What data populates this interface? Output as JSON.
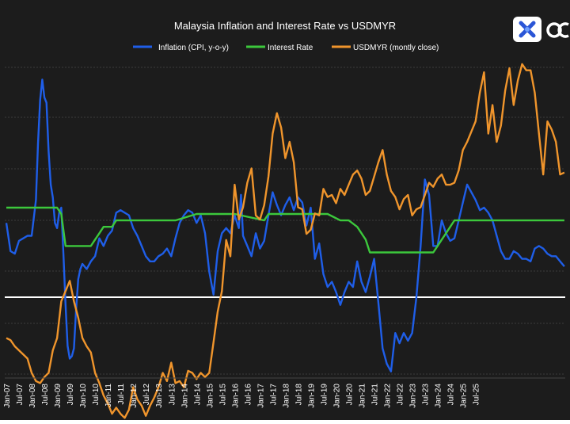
{
  "chart_data": {
    "type": "line",
    "title": "Malaysia Inflation and Interest Rate vs USDMYR",
    "xlabel": "",
    "ylabel": "",
    "x_ticks": [
      "Jan-07",
      "Jul-07",
      "Jan-08",
      "Jul-08",
      "Jan-09",
      "Jul-09",
      "Jan-10",
      "Jul-10",
      "Jan-11",
      "Jul-11",
      "Jan-12",
      "Jul-12",
      "Jan-13",
      "Jul-13",
      "Jan-14",
      "Jul-14",
      "Jan-15",
      "Jul-15",
      "Jan-16",
      "Jul-16",
      "Jan-17",
      "Jul-17",
      "Jan-18",
      "Jul-18",
      "Jan-19",
      "Jul-19",
      "Jan-20",
      "Jul-20",
      "Jan-21",
      "Jul-21",
      "Jan-22",
      "Jul-22",
      "Jan-23",
      "Jul-23",
      "Jan-24",
      "Jul-24",
      "Jan-25",
      "Jul-25"
    ],
    "legend_position": "top",
    "grid": true,
    "background": "#1c1c1c",
    "zero_line": "white",
    "series": [
      {
        "name": "Inflation (CPI, y-o-y)",
        "color": "#1f5ee8",
        "points": [
          [
            0,
            2.9
          ],
          [
            2,
            1.8
          ],
          [
            4,
            1.7
          ],
          [
            6,
            2.2
          ],
          [
            8,
            2.3
          ],
          [
            10,
            2.4
          ],
          [
            12,
            2.4
          ],
          [
            14,
            3.8
          ],
          [
            15,
            6.0
          ],
          [
            16,
            7.7
          ],
          [
            17,
            8.5
          ],
          [
            18,
            7.8
          ],
          [
            19,
            7.6
          ],
          [
            20,
            5.7
          ],
          [
            21,
            4.4
          ],
          [
            22,
            3.9
          ],
          [
            23,
            2.9
          ],
          [
            24,
            2.7
          ],
          [
            25,
            3.3
          ],
          [
            26,
            3.5
          ],
          [
            27,
            1.7
          ],
          [
            28,
            -0.3
          ],
          [
            29,
            -1.9
          ],
          [
            30,
            -2.4
          ],
          [
            31,
            -2.3
          ],
          [
            32,
            -2.0
          ],
          [
            33,
            -0.5
          ],
          [
            34,
            0.7
          ],
          [
            35,
            1.1
          ],
          [
            36,
            1.3
          ],
          [
            38,
            1.1
          ],
          [
            40,
            1.4
          ],
          [
            42,
            1.6
          ],
          [
            44,
            2.3
          ],
          [
            46,
            2.0
          ],
          [
            48,
            2.4
          ],
          [
            50,
            2.6
          ],
          [
            52,
            3.3
          ],
          [
            54,
            3.4
          ],
          [
            56,
            3.3
          ],
          [
            58,
            3.2
          ],
          [
            60,
            2.7
          ],
          [
            62,
            2.4
          ],
          [
            64,
            2.0
          ],
          [
            66,
            1.6
          ],
          [
            68,
            1.4
          ],
          [
            70,
            1.4
          ],
          [
            72,
            1.6
          ],
          [
            74,
            1.7
          ],
          [
            76,
            1.9
          ],
          [
            78,
            1.6
          ],
          [
            80,
            2.3
          ],
          [
            82,
            2.9
          ],
          [
            84,
            3.2
          ],
          [
            86,
            3.4
          ],
          [
            88,
            3.3
          ],
          [
            90,
            2.9
          ],
          [
            92,
            3.2
          ],
          [
            94,
            2.5
          ],
          [
            96,
            1.0
          ],
          [
            98,
            0.1
          ],
          [
            100,
            1.8
          ],
          [
            102,
            2.5
          ],
          [
            104,
            2.7
          ],
          [
            106,
            2.5
          ],
          [
            108,
            3.2
          ],
          [
            110,
            2.7
          ],
          [
            111,
            4.0
          ],
          [
            112,
            2.4
          ],
          [
            114,
            2.0
          ],
          [
            116,
            1.6
          ],
          [
            118,
            2.5
          ],
          [
            120,
            1.9
          ],
          [
            122,
            2.2
          ],
          [
            124,
            3.2
          ],
          [
            126,
            4.1
          ],
          [
            128,
            3.6
          ],
          [
            130,
            3.2
          ],
          [
            132,
            3.6
          ],
          [
            134,
            3.9
          ],
          [
            136,
            3.4
          ],
          [
            138,
            3.9
          ],
          [
            140,
            3.7
          ],
          [
            142,
            2.8
          ],
          [
            144,
            3.5
          ],
          [
            146,
            1.5
          ],
          [
            148,
            2.1
          ],
          [
            150,
            0.9
          ],
          [
            152,
            0.4
          ],
          [
            154,
            0.6
          ],
          [
            156,
            0.2
          ],
          [
            158,
            -0.3
          ],
          [
            160,
            0.2
          ],
          [
            162,
            0.6
          ],
          [
            164,
            0.4
          ],
          [
            166,
            1.4
          ],
          [
            168,
            0.6
          ],
          [
            170,
            0.2
          ],
          [
            172,
            0.8
          ],
          [
            174,
            1.5
          ],
          [
            176,
            -0.2
          ],
          [
            178,
            -2.0
          ],
          [
            180,
            -2.6
          ],
          [
            182,
            -2.9
          ],
          [
            184,
            -1.4
          ],
          [
            186,
            -1.8
          ],
          [
            188,
            -1.4
          ],
          [
            190,
            -1.7
          ],
          [
            192,
            -1.4
          ],
          [
            194,
            0.0
          ],
          [
            196,
            2.0
          ],
          [
            198,
            4.6
          ],
          [
            200,
            4.0
          ],
          [
            202,
            2.0
          ],
          [
            204,
            2.0
          ],
          [
            206,
            3.0
          ],
          [
            208,
            2.5
          ],
          [
            210,
            2.2
          ],
          [
            212,
            2.3
          ],
          [
            214,
            3.0
          ],
          [
            216,
            3.7
          ],
          [
            218,
            4.4
          ],
          [
            220,
            4.1
          ],
          [
            222,
            3.8
          ],
          [
            224,
            3.4
          ],
          [
            226,
            3.5
          ],
          [
            228,
            3.3
          ],
          [
            230,
            3.0
          ],
          [
            232,
            2.4
          ],
          [
            234,
            1.8
          ],
          [
            236,
            1.5
          ],
          [
            238,
            1.5
          ],
          [
            240,
            1.8
          ],
          [
            242,
            1.7
          ],
          [
            244,
            1.5
          ],
          [
            246,
            1.5
          ],
          [
            248,
            1.4
          ],
          [
            250,
            1.9
          ],
          [
            252,
            2.0
          ],
          [
            254,
            1.9
          ],
          [
            256,
            1.7
          ],
          [
            258,
            1.6
          ],
          [
            260,
            1.6
          ],
          [
            262,
            1.4
          ],
          [
            264,
            1.2
          ]
        ]
      },
      {
        "name": "Interest Rate",
        "color": "#3cc83c",
        "points": [
          [
            0,
            3.5
          ],
          [
            24,
            3.5
          ],
          [
            26,
            3.25
          ],
          [
            28,
            2.0
          ],
          [
            40,
            2.0
          ],
          [
            42,
            2.25
          ],
          [
            44,
            2.5
          ],
          [
            46,
            2.75
          ],
          [
            50,
            2.75
          ],
          [
            52,
            3.0
          ],
          [
            80,
            3.0
          ],
          [
            90,
            3.25
          ],
          [
            108,
            3.25
          ],
          [
            122,
            3.0
          ],
          [
            124,
            3.25
          ],
          [
            152,
            3.25
          ],
          [
            158,
            3.0
          ],
          [
            162,
            3.0
          ],
          [
            166,
            2.75
          ],
          [
            168,
            2.5
          ],
          [
            170,
            2.25
          ],
          [
            172,
            1.75
          ],
          [
            202,
            1.75
          ],
          [
            204,
            2.0
          ],
          [
            206,
            2.25
          ],
          [
            208,
            2.5
          ],
          [
            210,
            2.75
          ],
          [
            212,
            3.0
          ],
          [
            226,
            3.0
          ],
          [
            264,
            3.0
          ]
        ]
      },
      {
        "name": "USDMYR (montly close)",
        "color": "#f0952c",
        "points": [
          [
            0,
            3.42
          ],
          [
            2,
            3.41
          ],
          [
            4,
            3.38
          ],
          [
            6,
            3.36
          ],
          [
            8,
            3.34
          ],
          [
            10,
            3.32
          ],
          [
            12,
            3.25
          ],
          [
            14,
            3.21
          ],
          [
            16,
            3.2
          ],
          [
            18,
            3.23
          ],
          [
            20,
            3.25
          ],
          [
            22,
            3.36
          ],
          [
            24,
            3.42
          ],
          [
            26,
            3.6
          ],
          [
            28,
            3.65
          ],
          [
            30,
            3.7
          ],
          [
            32,
            3.6
          ],
          [
            34,
            3.52
          ],
          [
            36,
            3.42
          ],
          [
            38,
            3.38
          ],
          [
            40,
            3.35
          ],
          [
            42,
            3.25
          ],
          [
            44,
            3.2
          ],
          [
            46,
            3.14
          ],
          [
            48,
            3.1
          ],
          [
            50,
            3.05
          ],
          [
            52,
            3.08
          ],
          [
            54,
            3.05
          ],
          [
            56,
            3.03
          ],
          [
            58,
            3.07
          ],
          [
            60,
            3.18
          ],
          [
            62,
            3.12
          ],
          [
            64,
            3.09
          ],
          [
            66,
            3.04
          ],
          [
            68,
            3.09
          ],
          [
            70,
            3.13
          ],
          [
            72,
            3.18
          ],
          [
            74,
            3.25
          ],
          [
            76,
            3.21
          ],
          [
            78,
            3.3
          ],
          [
            80,
            3.2
          ],
          [
            82,
            3.21
          ],
          [
            84,
            3.18
          ],
          [
            86,
            3.26
          ],
          [
            88,
            3.25
          ],
          [
            90,
            3.22
          ],
          [
            92,
            3.25
          ],
          [
            94,
            3.23
          ],
          [
            96,
            3.25
          ],
          [
            98,
            3.4
          ],
          [
            100,
            3.55
          ],
          [
            102,
            3.65
          ],
          [
            104,
            3.9
          ],
          [
            106,
            3.82
          ],
          [
            108,
            4.17
          ],
          [
            110,
            4.0
          ],
          [
            112,
            4.06
          ],
          [
            114,
            4.18
          ],
          [
            116,
            4.25
          ],
          [
            118,
            4.02
          ],
          [
            120,
            4.0
          ],
          [
            122,
            4.07
          ],
          [
            124,
            4.21
          ],
          [
            126,
            4.42
          ],
          [
            128,
            4.52
          ],
          [
            130,
            4.45
          ],
          [
            132,
            4.3
          ],
          [
            134,
            4.38
          ],
          [
            136,
            4.28
          ],
          [
            138,
            4.06
          ],
          [
            140,
            4.05
          ],
          [
            142,
            3.93
          ],
          [
            144,
            3.95
          ],
          [
            146,
            4.03
          ],
          [
            148,
            4.02
          ],
          [
            150,
            4.15
          ],
          [
            152,
            4.11
          ],
          [
            154,
            4.12
          ],
          [
            156,
            4.08
          ],
          [
            158,
            4.15
          ],
          [
            160,
            4.12
          ],
          [
            162,
            4.17
          ],
          [
            164,
            4.22
          ],
          [
            166,
            4.24
          ],
          [
            168,
            4.2
          ],
          [
            170,
            4.12
          ],
          [
            172,
            4.14
          ],
          [
            174,
            4.21
          ],
          [
            176,
            4.28
          ],
          [
            178,
            4.34
          ],
          [
            180,
            4.22
          ],
          [
            182,
            4.14
          ],
          [
            184,
            4.11
          ],
          [
            186,
            4.05
          ],
          [
            188,
            4.1
          ],
          [
            190,
            4.12
          ],
          [
            192,
            4.02
          ],
          [
            194,
            4.05
          ],
          [
            196,
            4.06
          ],
          [
            198,
            4.12
          ],
          [
            200,
            4.18
          ],
          [
            202,
            4.16
          ],
          [
            204,
            4.2
          ],
          [
            206,
            4.22
          ],
          [
            208,
            4.17
          ],
          [
            210,
            4.17
          ],
          [
            212,
            4.18
          ],
          [
            214,
            4.24
          ],
          [
            216,
            4.34
          ],
          [
            218,
            4.38
          ],
          [
            220,
            4.43
          ],
          [
            222,
            4.48
          ],
          [
            224,
            4.62
          ],
          [
            226,
            4.72
          ],
          [
            228,
            4.42
          ],
          [
            230,
            4.56
          ],
          [
            232,
            4.38
          ],
          [
            234,
            4.46
          ],
          [
            236,
            4.63
          ],
          [
            238,
            4.74
          ],
          [
            240,
            4.56
          ],
          [
            242,
            4.68
          ],
          [
            244,
            4.76
          ],
          [
            246,
            4.73
          ],
          [
            248,
            4.73
          ],
          [
            250,
            4.62
          ],
          [
            252,
            4.42
          ],
          [
            254,
            4.22
          ],
          [
            256,
            4.48
          ],
          [
            258,
            4.44
          ],
          [
            260,
            4.38
          ],
          [
            262,
            4.22
          ],
          [
            264,
            4.23
          ]
        ]
      }
    ]
  }
}
